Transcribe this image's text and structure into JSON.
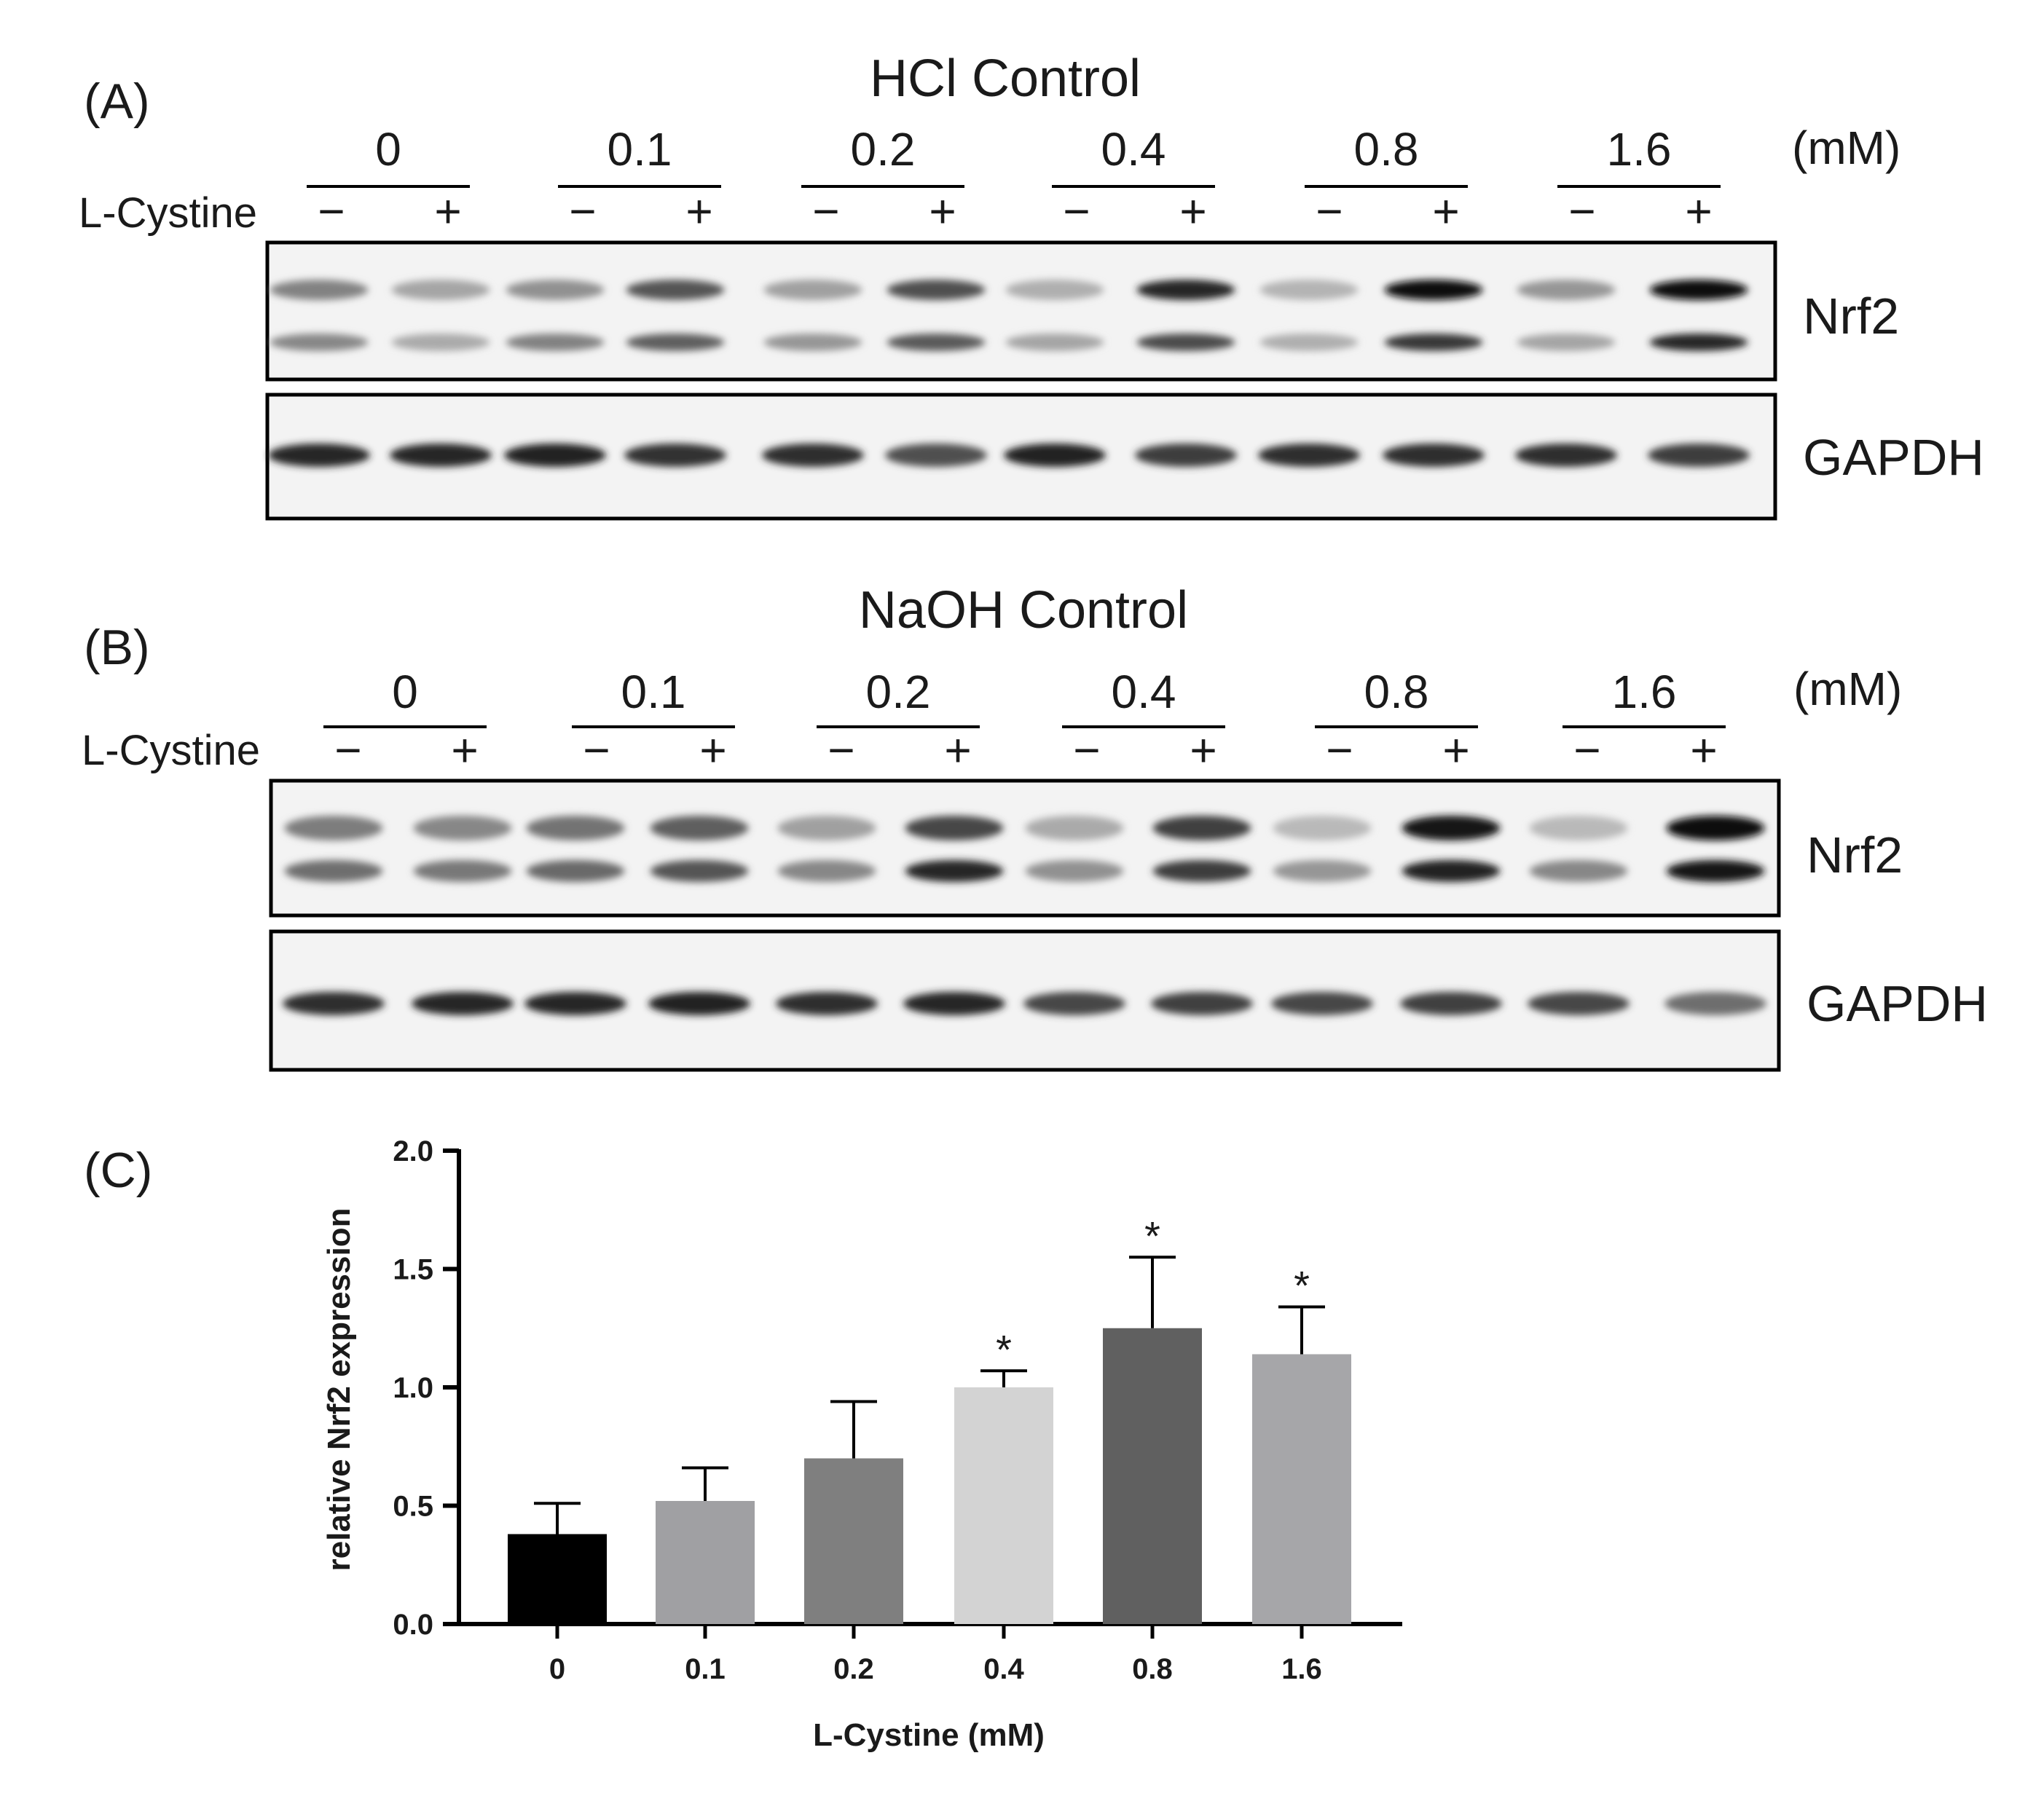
{
  "figure": {
    "panel_labels": [
      "(A)",
      "(B)",
      "(C)"
    ],
    "units": "(mM)",
    "treatment_label": "L-Cystine",
    "minus_sign": "−",
    "plus_sign": "+",
    "concentrations": [
      "0",
      "0.1",
      "0.2",
      "0.4",
      "0.8",
      "1.6"
    ]
  },
  "panelA": {
    "title": "HCl Control",
    "blot_nrf2_label": "Nrf2",
    "blot_gapdh_label": "GAPDH"
  },
  "panelB": {
    "title": "NaOH Control",
    "blot_nrf2_label": "Nrf2",
    "blot_gapdh_label": "GAPDH"
  },
  "chart_data": {
    "type": "bar",
    "title": "",
    "xlabel": "L-Cystine (mM)",
    "ylabel": "relative Nrf2 expression",
    "categories": [
      "0",
      "0.1",
      "0.2",
      "0.4",
      "0.8",
      "1.6"
    ],
    "values": [
      0.38,
      0.52,
      0.7,
      1.0,
      1.25,
      1.14
    ],
    "error_upper": [
      0.13,
      0.14,
      0.24,
      0.07,
      0.3,
      0.2
    ],
    "significance": [
      "",
      "",
      "",
      "*",
      "*",
      "*"
    ],
    "ylim": [
      0,
      2.0
    ],
    "yticks": [
      "0.0",
      "0.5",
      "1.0",
      "1.5",
      "2.0"
    ],
    "bar_colors": [
      "#000000",
      "#a0a0a3",
      "#7f7f7f",
      "#d3d3d3",
      "#606060",
      "#a6a6a9"
    ],
    "grid": false
  }
}
